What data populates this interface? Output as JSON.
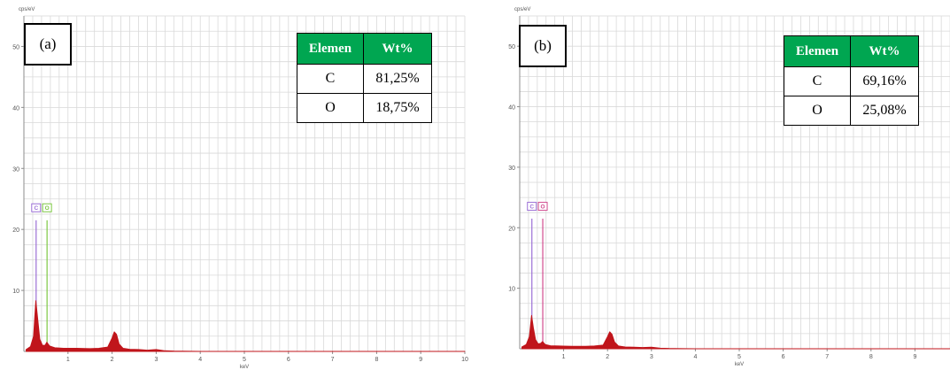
{
  "chart_data": [
    {
      "type": "line",
      "panel_label": "(a)",
      "ylabel": "cps/eV",
      "xlabel": "keV",
      "xlim": [
        0,
        10
      ],
      "ylim": [
        0,
        55
      ],
      "x_ticks": [
        "1",
        "2",
        "3",
        "4",
        "5",
        "6",
        "7",
        "8",
        "9",
        "10"
      ],
      "y_ticks": [
        "10",
        "20",
        "30",
        "40",
        "50"
      ],
      "grid": true,
      "element_markers": [
        {
          "label": "C",
          "x": 0.277,
          "color": "#9b6fd6"
        },
        {
          "label": "O",
          "x": 0.525,
          "color": "#7dc843"
        }
      ],
      "series": [
        {
          "color": "#c0151b",
          "x": [
            0.05,
            0.15,
            0.22,
            0.27,
            0.31,
            0.36,
            0.42,
            0.48,
            0.52,
            0.58,
            0.7,
            0.9,
            1.2,
            1.5,
            1.7,
            1.9,
            2.0,
            2.05,
            2.1,
            2.16,
            2.25,
            2.4,
            2.6,
            2.8,
            3.0,
            3.2,
            3.4,
            4,
            5,
            6,
            7,
            8,
            9,
            10
          ],
          "y": [
            0.3,
            0.8,
            2.5,
            8.3,
            5.5,
            2.0,
            1.0,
            1.0,
            1.5,
            0.9,
            0.6,
            0.5,
            0.5,
            0.45,
            0.5,
            0.7,
            2.2,
            3.2,
            2.8,
            1.2,
            0.5,
            0.35,
            0.3,
            0.2,
            0.3,
            0.1,
            0.05,
            0,
            0,
            0,
            0,
            0,
            0,
            0
          ]
        }
      ],
      "table": {
        "headers": [
          "Elemen",
          "Wt%"
        ],
        "rows": [
          [
            "C",
            "81,25%"
          ],
          [
            "O",
            "18,75%"
          ]
        ]
      }
    },
    {
      "type": "line",
      "panel_label": "(b)",
      "ylabel": "cps/eV",
      "xlabel": "keV",
      "xlim": [
        0,
        10
      ],
      "ylim": [
        0,
        55
      ],
      "x_ticks": [
        "1",
        "2",
        "3",
        "4",
        "5",
        "6",
        "7",
        "8",
        "9"
      ],
      "y_ticks": [
        "10",
        "20",
        "30",
        "40",
        "50"
      ],
      "grid": true,
      "element_markers": [
        {
          "label": "C",
          "x": 0.277,
          "color": "#9b6fd6"
        },
        {
          "label": "O",
          "x": 0.525,
          "color": "#d14b8f"
        }
      ],
      "series": [
        {
          "color": "#c0151b",
          "x": [
            0.05,
            0.15,
            0.22,
            0.27,
            0.31,
            0.36,
            0.42,
            0.48,
            0.52,
            0.58,
            0.7,
            0.9,
            1.2,
            1.5,
            1.7,
            1.9,
            2.0,
            2.05,
            2.1,
            2.16,
            2.25,
            2.4,
            2.6,
            2.8,
            3.0,
            3.2,
            3.4,
            4,
            5,
            6,
            7,
            8,
            9,
            10
          ],
          "y": [
            0.3,
            0.7,
            2.0,
            5.5,
            3.5,
            1.5,
            0.8,
            0.9,
            1.2,
            0.7,
            0.5,
            0.45,
            0.4,
            0.4,
            0.45,
            0.6,
            2.0,
            2.8,
            2.4,
            1.1,
            0.45,
            0.3,
            0.25,
            0.2,
            0.25,
            0.1,
            0.05,
            0,
            0,
            0,
            0,
            0,
            0,
            0
          ]
        }
      ],
      "table": {
        "headers": [
          "Elemen",
          "Wt%"
        ],
        "rows": [
          [
            "C",
            "69,16%"
          ],
          [
            "O",
            "25,08%"
          ]
        ]
      }
    }
  ],
  "colors": {
    "table_header_bg": "#00a651",
    "grid": "#d9d9d9",
    "axis": "#8c8c8c",
    "spectrum": "#c0151b"
  }
}
